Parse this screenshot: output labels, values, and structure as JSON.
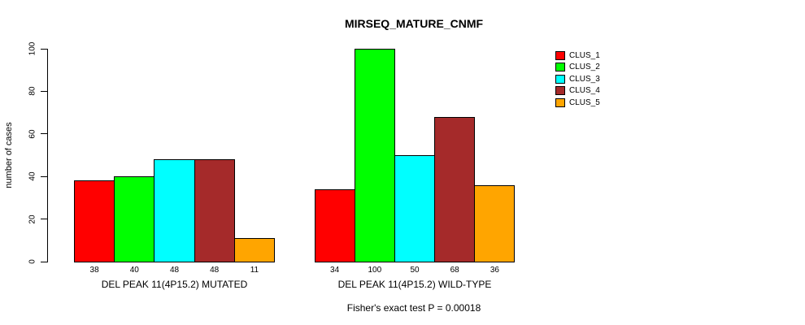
{
  "chart_data": {
    "type": "bar",
    "title": "MIRSEQ_MATURE_CNMF",
    "ylabel": "number of cases",
    "ylim": [
      0,
      100
    ],
    "yticks": [
      0,
      20,
      40,
      60,
      80,
      100
    ],
    "grid": false,
    "legend_position": "right",
    "categories": [
      "DEL PEAK 11(4P15.2) MUTATED",
      "DEL PEAK 11(4P15.2) WILD-TYPE"
    ],
    "series": [
      {
        "name": "CLUS_1",
        "color": "#FF0000",
        "values": [
          38,
          34
        ]
      },
      {
        "name": "CLUS_2",
        "color": "#00FF00",
        "values": [
          40,
          100
        ]
      },
      {
        "name": "CLUS_3",
        "color": "#00FFFF",
        "values": [
          48,
          50
        ]
      },
      {
        "name": "CLUS_4",
        "color": "#A52A2A",
        "values": [
          48,
          68
        ]
      },
      {
        "name": "CLUS_5",
        "color": "#FFA500",
        "values": [
          11,
          36
        ]
      }
    ],
    "bar_value_labels": [
      [
        38,
        40,
        48,
        48,
        11
      ],
      [
        34,
        100,
        50,
        68,
        36
      ]
    ],
    "footnote": "Fisher's exact test P = 0.00018",
    "axis_color": "#000000",
    "bar_border_color": "#000000"
  }
}
